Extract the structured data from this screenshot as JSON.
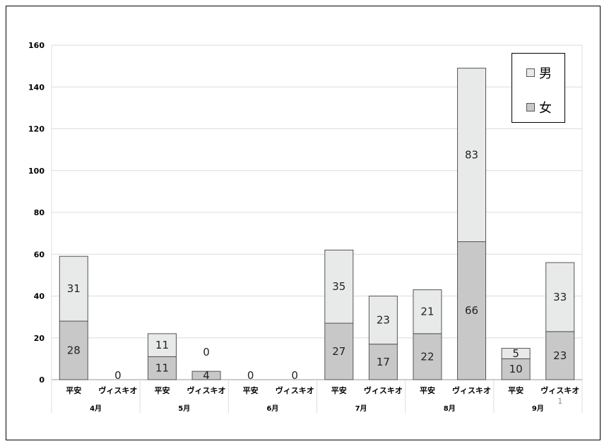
{
  "chart_data": {
    "type": "bar",
    "stacked": true,
    "groups": [
      "4月",
      "5月",
      "6月",
      "7月",
      "8月",
      "9月"
    ],
    "categories": [
      "平安",
      "ヴィスキオ",
      "平安",
      "ヴィスキオ",
      "平安",
      "ヴィスキオ",
      "平安",
      "ヴィスキオ",
      "平安",
      "ヴィスキオ",
      "平安",
      "ヴィスキオ"
    ],
    "series": [
      {
        "name": "女",
        "color": "#c8c8c8",
        "values": [
          28,
          0,
          11,
          4,
          0,
          0,
          27,
          17,
          22,
          66,
          10,
          23
        ]
      },
      {
        "name": "男",
        "color": "#e8e9e9",
        "values": [
          31,
          0,
          11,
          0,
          0,
          0,
          35,
          23,
          21,
          83,
          5,
          33
        ]
      }
    ],
    "data_labels": {
      "女": [
        "28",
        "0",
        "11",
        "4",
        "0",
        "0",
        "27",
        "17",
        "22",
        "66",
        "10",
        "23"
      ],
      "男": [
        "31",
        "",
        "11",
        "0",
        "",
        "",
        "35",
        "23",
        "21",
        "83",
        "5",
        "33"
      ]
    },
    "yticks": [
      0,
      20,
      40,
      60,
      80,
      100,
      120,
      140,
      160
    ],
    "ylim": [
      0,
      160
    ],
    "grid": true,
    "legend_position": "top-right",
    "extra_annotation": "1"
  },
  "legend": {
    "male": "男",
    "female": "女"
  }
}
